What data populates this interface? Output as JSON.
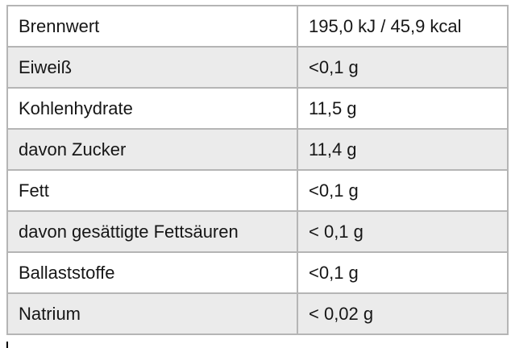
{
  "document": {
    "type": "nutrition-facts-table",
    "language": "de"
  },
  "table": {
    "columns": [
      "nutrient",
      "amount"
    ],
    "rows": [
      {
        "label": "Brennwert",
        "value": "195,0 kJ / 45,9 kcal"
      },
      {
        "label": "Eiweiß",
        "value": "<0,1 g"
      },
      {
        "label": "Kohlenhydrate",
        "value": "11,5 g"
      },
      {
        "label": "davon Zucker",
        "value": "11,4 g"
      },
      {
        "label": "Fett",
        "value": "<0,1 g"
      },
      {
        "label": "davon gesättigte Fettsäuren",
        "value": "< 0,1 g"
      },
      {
        "label": "Ballaststoffe",
        "value": "<0,1 g"
      },
      {
        "label": "Natrium",
        "value": "< 0,02 g"
      }
    ],
    "colors": {
      "row_background": "#ffffff",
      "row_alt_background": "#ebebeb",
      "border": "#b5b5b5",
      "text": "#161616",
      "cursor": "#000000"
    }
  }
}
